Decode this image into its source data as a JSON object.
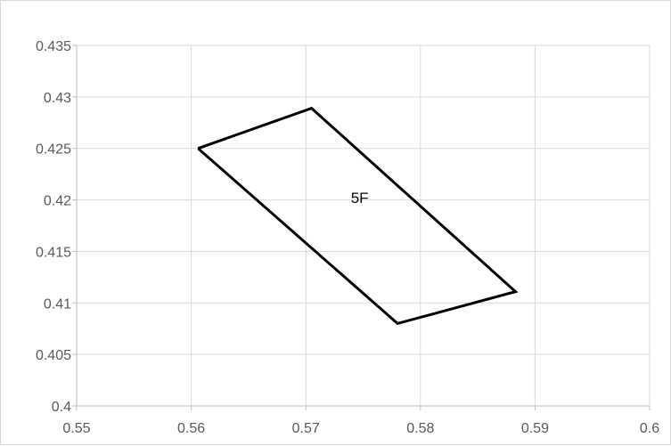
{
  "chart_data": {
    "type": "scatter",
    "title": "",
    "xlabel": "",
    "ylabel": "",
    "xlim": [
      0.55,
      0.6
    ],
    "ylim": [
      0.4,
      0.435
    ],
    "x_ticks": [
      "0.55",
      "0.56",
      "0.57",
      "0.58",
      "0.59",
      "0.6"
    ],
    "y_ticks": [
      "0.4",
      "0.405",
      "0.41",
      "0.415",
      "0.42",
      "0.425",
      "0.43",
      "0.435"
    ],
    "grid": true,
    "legend": "none",
    "series": [
      {
        "line_color": "#000000",
        "closed": true,
        "x": [
          0.5606,
          0.5705,
          0.5883,
          0.578,
          0.5606
        ],
        "y": [
          0.425,
          0.4289,
          0.4111,
          0.408,
          0.425
        ]
      }
    ],
    "annotations": [
      {
        "text": "5F",
        "x": 0.5747,
        "y": 0.4197
      }
    ],
    "colors": {
      "grid": "#d9d9d9",
      "axis": "#bfbfbf",
      "tick_text": "#595959"
    }
  }
}
